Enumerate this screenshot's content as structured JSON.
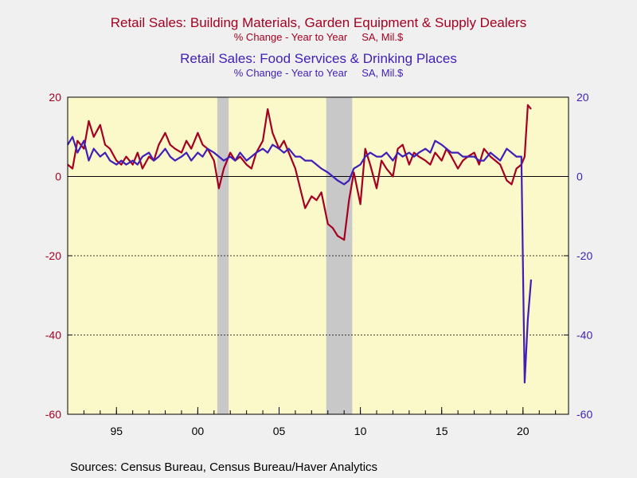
{
  "titles": {
    "series1_title": "Retail Sales: Building Materials, Garden Equipment & Supply Dealers",
    "series1_subtitle": "% Change - Year to Year     SA, Mil.$",
    "series2_title": "Retail Sales: Food Services & Drinking Places",
    "series2_subtitle": "% Change - Year to Year     SA, Mil.$"
  },
  "source": "Sources:  Census Bureau, Census Bureau/Haver Analytics",
  "colors": {
    "series1": "#a50021",
    "series2": "#3f1fb8",
    "plot_bg": "#fbf8c9",
    "recession": "#c8c8c8",
    "page_bg": "#f0f0f0"
  },
  "chart_data": {
    "type": "line",
    "xlim": [
      1992,
      2022.8
    ],
    "ylim": [
      -60,
      20
    ],
    "x_ticks": [
      {
        "value": 1995,
        "label": "95"
      },
      {
        "value": 2000,
        "label": "00"
      },
      {
        "value": 2005,
        "label": "05"
      },
      {
        "value": 2010,
        "label": "10"
      },
      {
        "value": 2015,
        "label": "15"
      },
      {
        "value": 2020,
        "label": "20"
      }
    ],
    "y_ticks_left": [
      {
        "value": 20,
        "label": "20"
      },
      {
        "value": 0,
        "label": "0"
      },
      {
        "value": -20,
        "label": "-20"
      },
      {
        "value": -40,
        "label": "-40"
      },
      {
        "value": -60,
        "label": "-60"
      }
    ],
    "y_ticks_right": [
      {
        "value": 20,
        "label": "20"
      },
      {
        "value": 0,
        "label": "0"
      },
      {
        "value": -20,
        "label": "-20"
      },
      {
        "value": -40,
        "label": "-40"
      },
      {
        "value": -60,
        "label": "-60"
      }
    ],
    "reference_lines": [
      0,
      -20,
      -40
    ],
    "recessions": [
      [
        2001.2,
        2001.9
      ],
      [
        2007.9,
        2009.5
      ]
    ],
    "series": [
      {
        "axis": "left",
        "x": [
          1992.0,
          1992.3,
          1992.6,
          1993.0,
          1993.3,
          1993.6,
          1994.0,
          1994.3,
          1994.6,
          1995.0,
          1995.3,
          1995.6,
          1996.0,
          1996.3,
          1996.6,
          1997.0,
          1997.3,
          1997.6,
          1998.0,
          1998.3,
          1998.6,
          1999.0,
          1999.3,
          1999.6,
          2000.0,
          2000.3,
          2000.6,
          2001.0,
          2001.3,
          2001.6,
          2002.0,
          2002.3,
          2002.6,
          2003.0,
          2003.3,
          2003.6,
          2004.0,
          2004.3,
          2004.6,
          2005.0,
          2005.3,
          2005.6,
          2006.0,
          2006.3,
          2006.6,
          2007.0,
          2007.3,
          2007.6,
          2008.0,
          2008.3,
          2008.6,
          2009.0,
          2009.3,
          2009.6,
          2010.0,
          2010.3,
          2010.6,
          2011.0,
          2011.3,
          2011.6,
          2012.0,
          2012.3,
          2012.6,
          2013.0,
          2013.3,
          2013.6,
          2014.0,
          2014.3,
          2014.6,
          2015.0,
          2015.3,
          2015.6,
          2016.0,
          2016.3,
          2016.6,
          2017.0,
          2017.3,
          2017.6,
          2018.0,
          2018.3,
          2018.6,
          2019.0,
          2019.3,
          2019.6,
          2019.9,
          2020.1,
          2020.3,
          2020.5
        ],
        "values": [
          3,
          2,
          9,
          7,
          14,
          10,
          13,
          8,
          7,
          4,
          3,
          5,
          3,
          6,
          2,
          5,
          4,
          8,
          11,
          8,
          7,
          6,
          9,
          7,
          11,
          8,
          7,
          4,
          -3,
          2,
          6,
          4,
          5,
          3,
          2,
          6,
          9,
          17,
          11,
          7,
          9,
          6,
          2,
          -3,
          -8,
          -5,
          -6,
          -4,
          -12,
          -13,
          -15,
          -16,
          -6,
          1,
          -7,
          7,
          3,
          -3,
          4,
          2,
          0,
          7,
          8,
          3,
          6,
          5,
          4,
          3,
          6,
          4,
          7,
          5,
          2,
          4,
          5,
          6,
          3,
          7,
          5,
          4,
          3,
          -1,
          -2,
          2,
          3,
          5,
          18,
          17
        ]
      },
      {
        "axis": "right",
        "x": [
          1992.0,
          1992.3,
          1992.6,
          1993.0,
          1993.3,
          1993.6,
          1994.0,
          1994.3,
          1994.6,
          1995.0,
          1995.3,
          1995.6,
          1996.0,
          1996.3,
          1996.6,
          1997.0,
          1997.3,
          1997.6,
          1998.0,
          1998.3,
          1998.6,
          1999.0,
          1999.3,
          1999.6,
          2000.0,
          2000.3,
          2000.6,
          2001.0,
          2001.3,
          2001.6,
          2002.0,
          2002.3,
          2002.6,
          2003.0,
          2003.3,
          2003.6,
          2004.0,
          2004.3,
          2004.6,
          2005.0,
          2005.3,
          2005.6,
          2006.0,
          2006.3,
          2006.6,
          2007.0,
          2007.3,
          2007.6,
          2008.0,
          2008.3,
          2008.6,
          2009.0,
          2009.3,
          2009.6,
          2010.0,
          2010.3,
          2010.6,
          2011.0,
          2011.3,
          2011.6,
          2012.0,
          2012.3,
          2012.6,
          2013.0,
          2013.3,
          2013.6,
          2014.0,
          2014.3,
          2014.6,
          2015.0,
          2015.3,
          2015.6,
          2016.0,
          2016.3,
          2016.6,
          2017.0,
          2017.3,
          2017.6,
          2018.0,
          2018.3,
          2018.6,
          2019.0,
          2019.3,
          2019.6,
          2019.9,
          2020.1,
          2020.3,
          2020.5
        ],
        "values": [
          8,
          10,
          6,
          9,
          4,
          7,
          5,
          6,
          4,
          3,
          4,
          3,
          4,
          3,
          5,
          6,
          4,
          5,
          7,
          5,
          4,
          5,
          6,
          4,
          6,
          5,
          7,
          6,
          5,
          4,
          5,
          4,
          6,
          4,
          5,
          6,
          7,
          6,
          8,
          7,
          6,
          7,
          5,
          5,
          4,
          4,
          3,
          2,
          1,
          0,
          -1,
          -2,
          -1,
          2,
          3,
          5,
          6,
          5,
          5,
          6,
          4,
          6,
          5,
          6,
          5,
          6,
          7,
          6,
          9,
          8,
          7,
          6,
          6,
          5,
          5,
          5,
          4,
          4,
          6,
          5,
          4,
          7,
          6,
          5,
          5,
          -52,
          -36,
          -26
        ]
      }
    ]
  }
}
